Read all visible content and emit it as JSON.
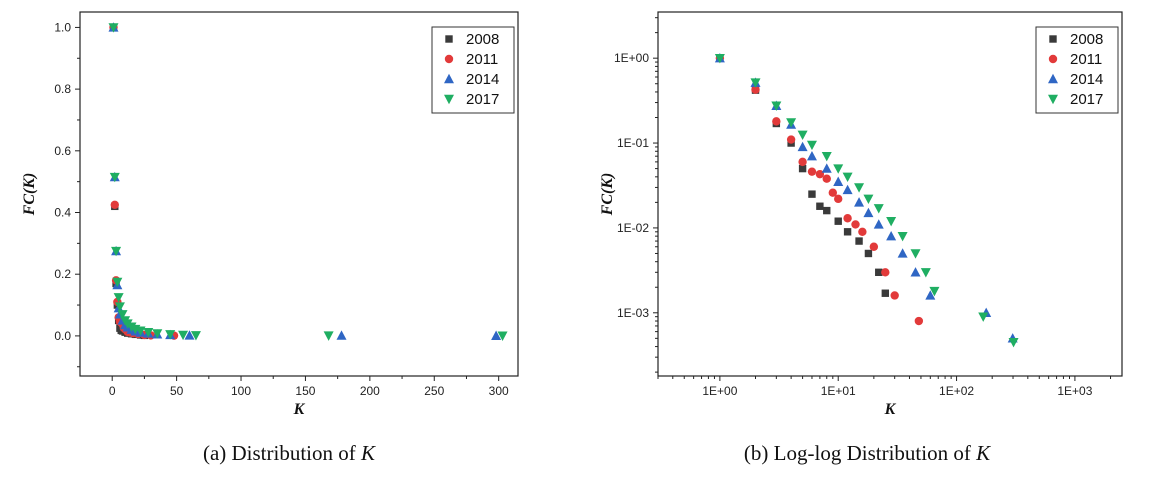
{
  "colors": {
    "2008": "#3a3a3a",
    "2011": "#e23a3a",
    "2014": "#2f66c4",
    "2017": "#1fae62"
  },
  "captions": [
    {
      "prefix": "(a) Distribution of ",
      "var": "K"
    },
    {
      "prefix": "(b) Log-log Distribution of ",
      "var": "K"
    }
  ],
  "chart_data": [
    {
      "type": "scatter",
      "xlabel": "K",
      "ylabel": "FC(K)",
      "xlim": [
        -25,
        315
      ],
      "ylim": [
        -0.13,
        1.05
      ],
      "xticks": [
        "0",
        "50",
        "100",
        "150",
        "200",
        "250",
        "300"
      ],
      "yticks": [
        "0.0",
        "0.2",
        "0.4",
        "0.6",
        "0.8",
        "1.0"
      ],
      "legend_position": "top-right",
      "series": [
        {
          "name": "2008",
          "marker": "square",
          "points": [
            [
              1,
              1.0
            ],
            [
              2,
              0.42
            ],
            [
              3,
              0.17
            ],
            [
              4,
              0.1
            ],
            [
              5,
              0.05
            ],
            [
              6,
              0.025
            ],
            [
              7,
              0.018
            ],
            [
              8,
              0.016
            ],
            [
              10,
              0.012
            ],
            [
              12,
              0.009
            ],
            [
              15,
              0.007
            ],
            [
              18,
              0.005
            ],
            [
              22,
              0.003
            ],
            [
              25,
              0.0017
            ]
          ]
        },
        {
          "name": "2011",
          "marker": "circle",
          "points": [
            [
              1,
              1.0
            ],
            [
              2,
              0.425
            ],
            [
              3,
              0.18
            ],
            [
              4,
              0.11
            ],
            [
              5,
              0.06
            ],
            [
              6,
              0.046
            ],
            [
              7,
              0.043
            ],
            [
              8,
              0.038
            ],
            [
              9,
              0.026
            ],
            [
              10,
              0.022
            ],
            [
              12,
              0.013
            ],
            [
              14,
              0.011
            ],
            [
              16,
              0.009
            ],
            [
              20,
              0.006
            ],
            [
              25,
              0.003
            ],
            [
              30,
              0.0016
            ],
            [
              48,
              0.0008
            ]
          ]
        },
        {
          "name": "2014",
          "marker": "triangle-up",
          "points": [
            [
              1,
              1.0
            ],
            [
              2,
              0.515
            ],
            [
              3,
              0.275
            ],
            [
              4,
              0.165
            ],
            [
              5,
              0.09
            ],
            [
              6,
              0.07
            ],
            [
              8,
              0.05
            ],
            [
              10,
              0.035
            ],
            [
              12,
              0.028
            ],
            [
              15,
              0.02
            ],
            [
              18,
              0.015
            ],
            [
              22,
              0.011
            ],
            [
              28,
              0.008
            ],
            [
              35,
              0.005
            ],
            [
              45,
              0.003
            ],
            [
              60,
              0.0016
            ],
            [
              178,
              0.001
            ],
            [
              298,
              0.0005
            ]
          ]
        },
        {
          "name": "2017",
          "marker": "triangle-down",
          "points": [
            [
              1,
              1.0
            ],
            [
              2,
              0.515
            ],
            [
              3,
              0.275
            ],
            [
              4,
              0.175
            ],
            [
              5,
              0.125
            ],
            [
              6,
              0.095
            ],
            [
              8,
              0.07
            ],
            [
              10,
              0.05
            ],
            [
              12,
              0.04
            ],
            [
              15,
              0.03
            ],
            [
              18,
              0.022
            ],
            [
              22,
              0.017
            ],
            [
              28,
              0.012
            ],
            [
              35,
              0.008
            ],
            [
              45,
              0.005
            ],
            [
              55,
              0.003
            ],
            [
              65,
              0.0018
            ],
            [
              168,
              0.0009
            ],
            [
              303,
              0.00045
            ]
          ]
        }
      ]
    },
    {
      "type": "scatter",
      "xlabel": "K",
      "ylabel": "FC(K)",
      "xscale": "log",
      "yscale": "log",
      "xlim": [
        0.3,
        2500
      ],
      "ylim": [
        0.00018,
        3.5
      ],
      "xticks": [
        "1E+00",
        "1E+01",
        "1E+02",
        "1E+03"
      ],
      "yticks": [
        "1E-03",
        "1E-02",
        "1E-01",
        "1E+00"
      ],
      "legend_position": "top-right",
      "series_ref": "same as panel (a)"
    }
  ]
}
